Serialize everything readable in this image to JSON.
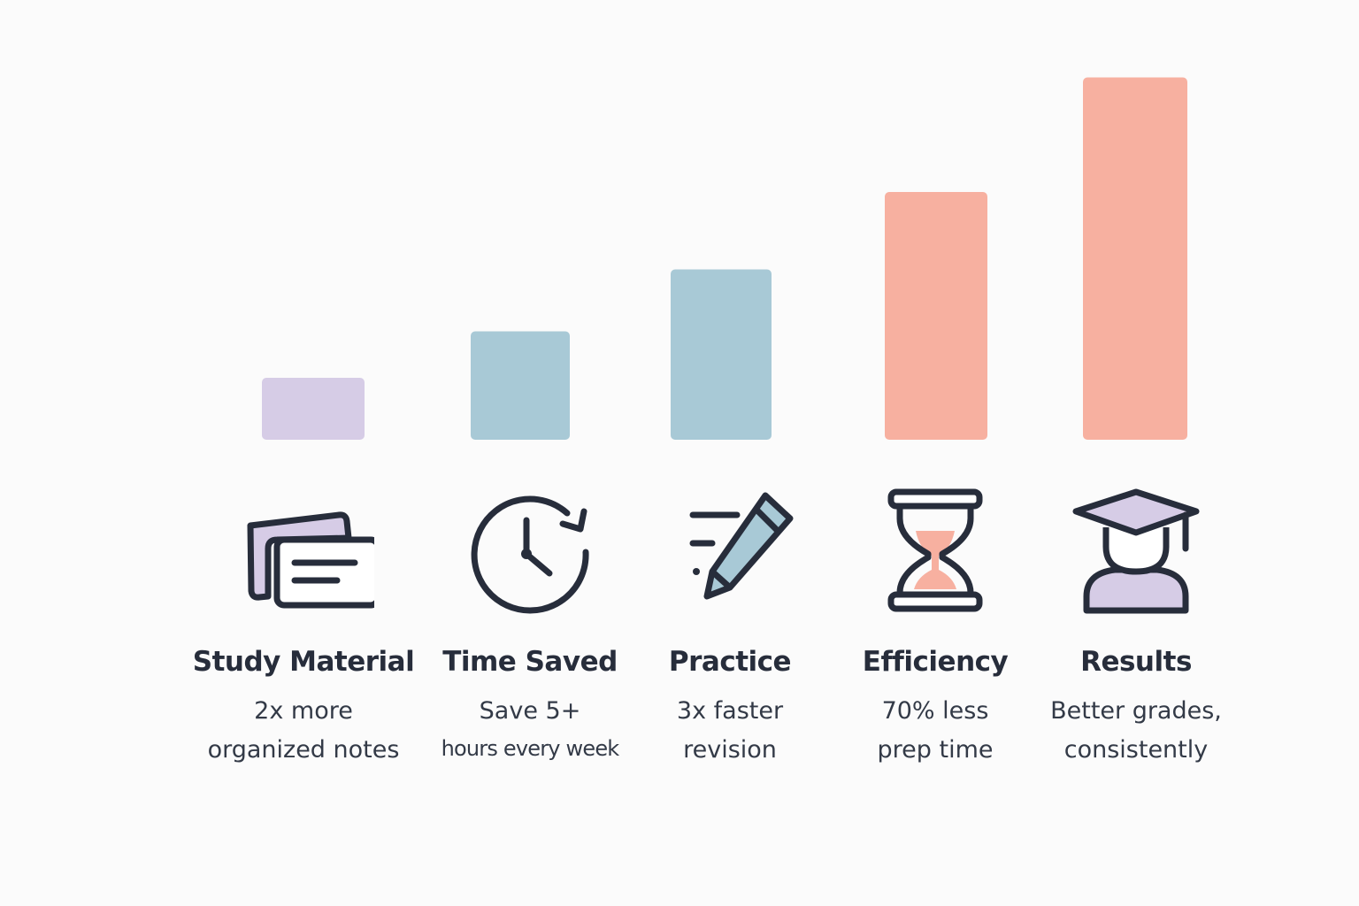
{
  "chart_data": {
    "type": "bar",
    "categories": [
      "Study Material",
      "Time Saved",
      "Practice",
      "Efficiency",
      "Results"
    ],
    "values": [
      1,
      1.75,
      2.75,
      4,
      5.85
    ],
    "ylim": [
      0,
      6
    ],
    "grid": false,
    "bar_colors": [
      "#d6cce6",
      "#a8c9d6",
      "#a8c9d6",
      "#f7b0a0",
      "#f7b0a0"
    ]
  },
  "items": [
    {
      "title": "Study Material",
      "line1": "2x more",
      "line2": "organized notes",
      "icon": "cards-icon"
    },
    {
      "title": "Time Saved",
      "line1": "Save 5+",
      "line2": "hours every week",
      "icon": "clock-refresh-icon"
    },
    {
      "title": "Practice",
      "line1": "3x faster",
      "line2": "revision",
      "icon": "pencil-icon"
    },
    {
      "title": "Efficiency",
      "line1": "70% less",
      "line2": "prep time",
      "icon": "hourglass-icon"
    },
    {
      "title": "Results",
      "line1": "Better grades,",
      "line2": "consistently",
      "icon": "graduate-icon"
    }
  ],
  "colors": {
    "ink": "#272d3b",
    "lavender": "#d6cce6",
    "blue": "#a8c9d6",
    "salmon": "#f7b0a0",
    "background": "#fbfbfb"
  }
}
